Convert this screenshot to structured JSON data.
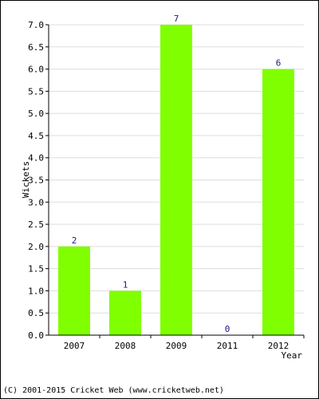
{
  "chart_data": {
    "type": "bar",
    "categories": [
      "2007",
      "2008",
      "2009",
      "2011",
      "2012"
    ],
    "values": [
      2,
      1,
      7,
      0,
      6
    ],
    "data_labels": [
      "2",
      "1",
      "7",
      "0",
      "6"
    ],
    "ylabel": "Wickets",
    "xlabel": "Year",
    "ylim": [
      0,
      7.0
    ],
    "yticks": [
      "0.0",
      "0.5",
      "1.0",
      "1.5",
      "2.0",
      "2.5",
      "3.0",
      "3.5",
      "4.0",
      "4.5",
      "5.0",
      "5.5",
      "6.0",
      "6.5",
      "7.0"
    ],
    "grid": true,
    "bar_color": "#80ff00",
    "grid_color": "#dddddd"
  },
  "footer": {
    "copyright": "(C) 2001-2015 Cricket Web (www.cricketweb.net)"
  }
}
